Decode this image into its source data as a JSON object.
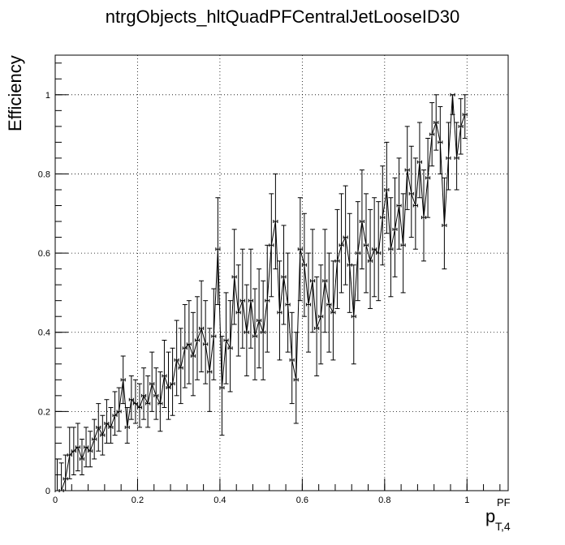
{
  "chart_data": {
    "type": "scatter",
    "title": "ntrgObjects_hltQuadPFCentralJetLooseID30",
    "ylabel": "Efficiency",
    "xlabel": {
      "base": "p",
      "sup": "PF",
      "sub": "T,4"
    },
    "xlim": [
      0,
      1.1
    ],
    "ylim": [
      0,
      1.1
    ],
    "xticks": [
      "0",
      "0.2",
      "0.4",
      "0.6",
      "0.8",
      "1"
    ],
    "yticks": [
      "0",
      "0.2",
      "0.4",
      "0.6",
      "0.8",
      "1"
    ],
    "grid": true,
    "legend": "none",
    "bin_width": 0.01,
    "series": [
      {
        "x": [
          0.005,
          0.015,
          0.025,
          0.035,
          0.045,
          0.055,
          0.065,
          0.075,
          0.085,
          0.095,
          0.105,
          0.115,
          0.125,
          0.135,
          0.145,
          0.155,
          0.165,
          0.175,
          0.185,
          0.195,
          0.205,
          0.215,
          0.225,
          0.235,
          0.245,
          0.255,
          0.265,
          0.275,
          0.285,
          0.295,
          0.305,
          0.315,
          0.325,
          0.335,
          0.345,
          0.355,
          0.365,
          0.375,
          0.385,
          0.395,
          0.405,
          0.415,
          0.425,
          0.435,
          0.445,
          0.455,
          0.465,
          0.475,
          0.485,
          0.495,
          0.505,
          0.515,
          0.525,
          0.535,
          0.545,
          0.555,
          0.565,
          0.575,
          0.585,
          0.595,
          0.605,
          0.615,
          0.625,
          0.635,
          0.645,
          0.655,
          0.665,
          0.675,
          0.685,
          0.695,
          0.705,
          0.715,
          0.725,
          0.735,
          0.745,
          0.755,
          0.765,
          0.775,
          0.785,
          0.795,
          0.805,
          0.815,
          0.825,
          0.835,
          0.845,
          0.855,
          0.865,
          0.875,
          0.885,
          0.895,
          0.905,
          0.915,
          0.925,
          0.935,
          0.945,
          0.955,
          0.965,
          0.975,
          0.985,
          0.995
        ],
        "y": [
          0.0,
          0.0,
          0.03,
          0.09,
          0.1,
          0.11,
          0.08,
          0.11,
          0.1,
          0.13,
          0.16,
          0.14,
          0.17,
          0.16,
          0.19,
          0.2,
          0.28,
          0.16,
          0.23,
          0.22,
          0.21,
          0.24,
          0.22,
          0.27,
          0.24,
          0.22,
          0.29,
          0.26,
          0.27,
          0.33,
          0.31,
          0.36,
          0.37,
          0.34,
          0.38,
          0.41,
          0.37,
          0.3,
          0.39,
          0.61,
          0.26,
          0.38,
          0.36,
          0.54,
          0.45,
          0.48,
          0.4,
          0.48,
          0.39,
          0.43,
          0.4,
          0.48,
          0.62,
          0.68,
          0.45,
          0.54,
          0.47,
          0.33,
          0.28,
          0.61,
          0.57,
          0.47,
          0.53,
          0.41,
          0.44,
          0.53,
          0.47,
          0.45,
          0.58,
          0.62,
          0.64,
          0.57,
          0.44,
          0.6,
          0.68,
          0.62,
          0.58,
          0.61,
          0.6,
          0.69,
          0.76,
          0.61,
          0.66,
          0.72,
          0.62,
          0.81,
          0.75,
          0.72,
          0.83,
          0.69,
          0.79,
          0.9,
          0.93,
          0.88,
          0.67,
          0.84,
          1.0,
          0.84,
          0.92,
          0.95
        ],
        "err_low": [
          0,
          0,
          0.03,
          0.06,
          0.06,
          0.06,
          0.04,
          0.05,
          0.04,
          0.05,
          0.06,
          0.05,
          0.05,
          0.04,
          0.05,
          0.05,
          0.06,
          0.04,
          0.05,
          0.05,
          0.05,
          0.06,
          0.06,
          0.07,
          0.06,
          0.07,
          0.08,
          0.08,
          0.08,
          0.09,
          0.09,
          0.1,
          0.1,
          0.1,
          0.1,
          0.11,
          0.1,
          0.1,
          0.11,
          0.14,
          0.12,
          0.11,
          0.11,
          0.12,
          0.11,
          0.12,
          0.11,
          0.12,
          0.11,
          0.12,
          0.12,
          0.13,
          0.13,
          0.12,
          0.12,
          0.12,
          0.12,
          0.11,
          0.11,
          0.13,
          0.13,
          0.12,
          0.13,
          0.12,
          0.12,
          0.13,
          0.12,
          0.12,
          0.12,
          0.12,
          0.12,
          0.12,
          0.12,
          0.12,
          0.12,
          0.12,
          0.12,
          0.12,
          0.12,
          0.12,
          0.11,
          0.12,
          0.12,
          0.11,
          0.12,
          0.1,
          0.11,
          0.11,
          0.09,
          0.11,
          0.1,
          0.08,
          0.07,
          0.08,
          0.11,
          0.08,
          0.05,
          0.08,
          0.07,
          0.06
        ],
        "err_high": [
          0.08,
          0.07,
          0.06,
          0.07,
          0.06,
          0.06,
          0.05,
          0.05,
          0.05,
          0.05,
          0.06,
          0.05,
          0.06,
          0.05,
          0.06,
          0.06,
          0.06,
          0.05,
          0.06,
          0.06,
          0.06,
          0.07,
          0.07,
          0.08,
          0.07,
          0.08,
          0.09,
          0.09,
          0.09,
          0.1,
          0.1,
          0.11,
          0.11,
          0.11,
          0.11,
          0.12,
          0.11,
          0.11,
          0.12,
          0.13,
          0.13,
          0.12,
          0.12,
          0.12,
          0.12,
          0.13,
          0.12,
          0.13,
          0.12,
          0.13,
          0.13,
          0.14,
          0.13,
          0.12,
          0.13,
          0.13,
          0.13,
          0.12,
          0.12,
          0.13,
          0.13,
          0.13,
          0.13,
          0.13,
          0.13,
          0.13,
          0.13,
          0.13,
          0.13,
          0.13,
          0.13,
          0.13,
          0.13,
          0.13,
          0.13,
          0.13,
          0.13,
          0.13,
          0.13,
          0.13,
          0.12,
          0.13,
          0.13,
          0.12,
          0.13,
          0.11,
          0.12,
          0.12,
          0.1,
          0.12,
          0.1,
          0.08,
          0.07,
          0.09,
          0.12,
          0.09,
          0.0,
          0.09,
          0.07,
          0.05
        ]
      }
    ]
  }
}
